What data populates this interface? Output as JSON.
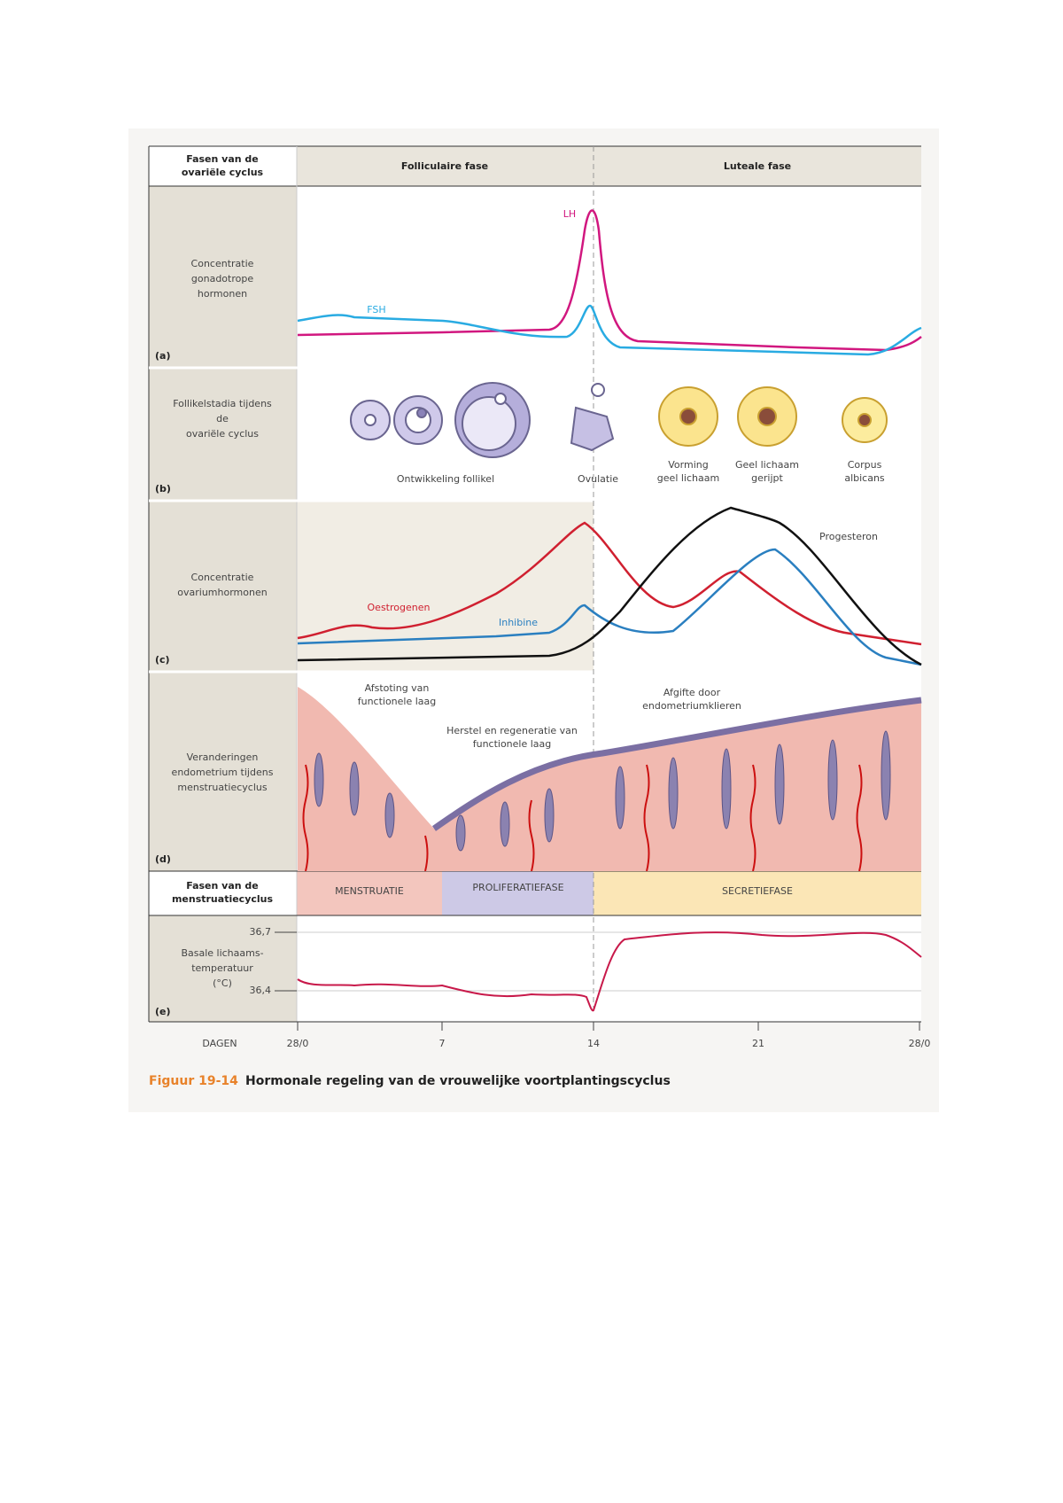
{
  "header": {
    "row_label": [
      "Fasen van de",
      "ovariële cyclus"
    ],
    "phases": [
      "Folliculaire fase",
      "Luteale fase"
    ]
  },
  "panel_a": {
    "letter": "(a)",
    "label": [
      "Concentratie",
      "gonadotrope",
      "hormonen"
    ],
    "curves": [
      "LH",
      "FSH"
    ]
  },
  "panel_b": {
    "letter": "(b)",
    "label": [
      "Follikelstadia tijdens",
      "de",
      "ovariële cyclus"
    ],
    "stages": [
      [
        "Ontwikkeling follikel"
      ],
      [
        "Ovulatie"
      ],
      [
        "Vorming",
        "geel lichaam"
      ],
      [
        "Geel lichaam",
        "gerijpt"
      ],
      [
        "Corpus",
        "albicans"
      ]
    ]
  },
  "panel_c": {
    "letter": "(c)",
    "label": [
      "Concentratie",
      "ovariumhormonen"
    ],
    "curves": [
      "Oestrogenen",
      "Inhibine",
      "Progesteron"
    ]
  },
  "panel_d": {
    "letter": "(d)",
    "label": [
      "Veranderingen",
      "endometrium tijdens",
      "menstruatiecyclus"
    ],
    "annotations": [
      [
        "Afstoting van",
        "functionele laag"
      ],
      [
        "Herstel en regeneratie van",
        "functionele laag"
      ],
      [
        "Afgifte door",
        "endometriumklieren"
      ]
    ]
  },
  "menstrual": {
    "row_label": [
      "Fasen van de",
      "menstruatiecyclus"
    ],
    "phases": [
      "MENSTRUATIE",
      "PROLIFERATIEFASE",
      "SECRETIEFASE"
    ]
  },
  "panel_e": {
    "letter": "(e)",
    "label": [
      "Basale lichaams-",
      "temperatuur",
      "(°C)"
    ],
    "ticks": [
      "36,7",
      "36,4"
    ]
  },
  "days": {
    "label": "DAGEN",
    "ticks": [
      "28/0",
      "7",
      "14",
      "21",
      "28/0"
    ]
  },
  "caption": {
    "number": "Figuur 19-14",
    "text": "Hormonale regeling van de vrouwelijke voortplantingscyclus"
  }
}
